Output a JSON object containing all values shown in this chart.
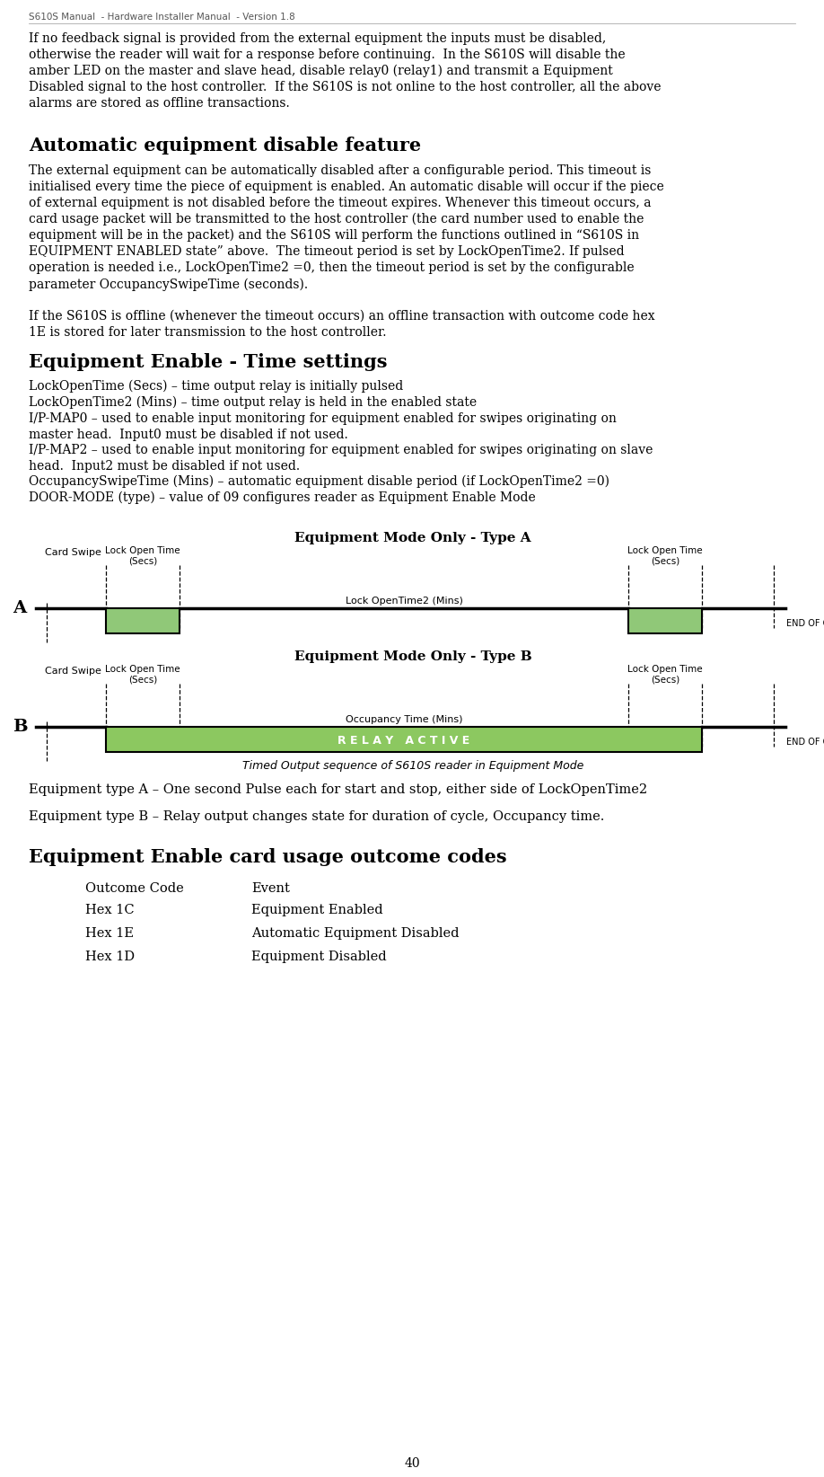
{
  "header": "S610S Manual  - Hardware Installer Manual  - Version 1.8",
  "page_number": "40",
  "background_color": "#ffffff",
  "text_color": "#000000",
  "green_color": "#90c878",
  "green_relay_color": "#8cc860",
  "line_color": "#000000",
  "diagram_caption": "Timed Output sequence of S610S reader in Equipment Mode",
  "type_a_label": "Equipment Mode Only - Type A",
  "type_b_label": "Equipment Mode Only - Type B",
  "relay_active_label": "R E L A Y   A C T I V E",
  "lock_open_time_label": "Lock Open Time\n(Secs)",
  "lock_open_time2_label": "Lock OpenTime2 (Mins)",
  "occupancy_time_label": "Occupancy Time (Mins)",
  "card_swipe_label": "Card Swipe",
  "end_of_cycle_label": "END OF CYCLE",
  "type_a_note": "Equipment type A – One second Pulse each for start and stop, either side of LockOpenTime2",
  "type_b_note": "Equipment type B – Relay output changes state for duration of cycle, Occupancy time.",
  "outcome_section_title": "Equipment Enable card usage outcome codes",
  "outcome_header_code": "Outcome Code",
  "outcome_header_event": "Event",
  "outcome_rows": [
    [
      "Hex 1C",
      "Equipment Enabled"
    ],
    [
      "Hex 1E",
      "Automatic Equipment Disabled"
    ],
    [
      "Hex 1D",
      "Equipment Disabled"
    ]
  ]
}
